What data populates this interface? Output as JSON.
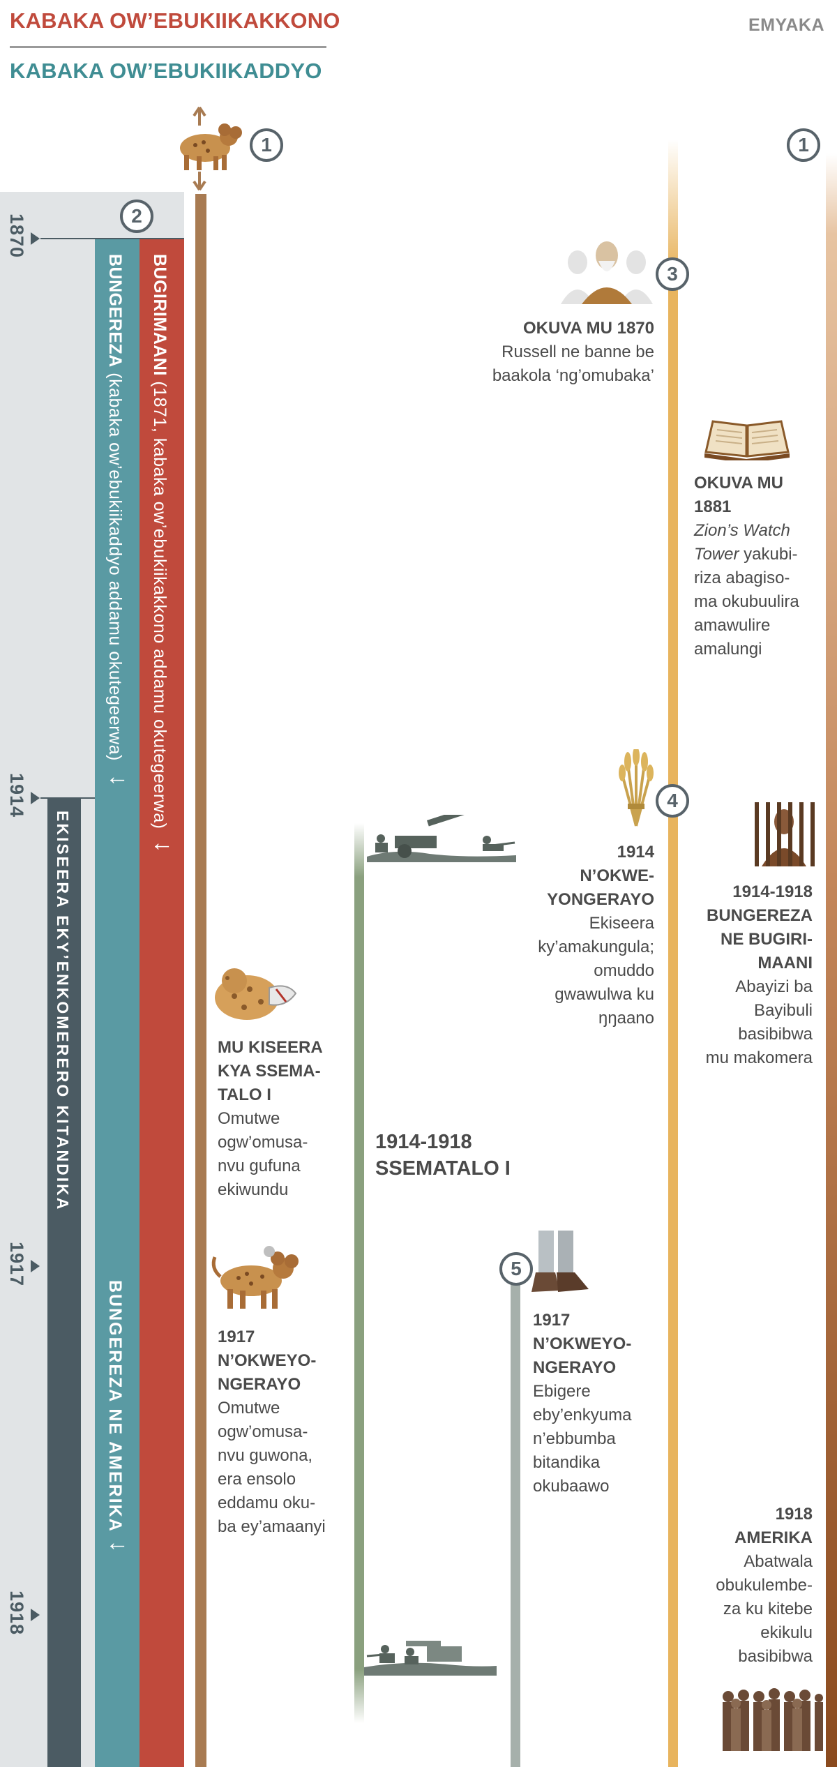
{
  "header": {
    "title_red": "KABAKA OW’EBUKIIKAKKONO",
    "title_teal": "KABAKA OW’EBUKIIKADDYO",
    "years_label": "EMYAKA"
  },
  "badges": {
    "b1_left": "1",
    "b1_right": "1",
    "b2": "2",
    "b3": "3",
    "b4": "4",
    "b5": "5"
  },
  "years": [
    "1870",
    "1914",
    "1917",
    "1918"
  ],
  "bars": {
    "red_name": "BUGIRIMAANI",
    "red_rest": " (1871, kabaka ow’ebukiikakkono addamu okutegeerwa)",
    "red_arrow": "↓",
    "teal_name": "BUNGEREZA",
    "teal_rest": " (kabaka ow’ebukiikaddyo addamu okutegeerwa)",
    "teal_arrow": "↓",
    "teal2_name": "BUNGEREZA NE AMERIKA",
    "teal2_arrow": "↓",
    "slate_name": "EKISEERA EKY’ENKOMERERO KITANDIKA"
  },
  "events": {
    "e1870": {
      "heading": "OKUVA MU 1870",
      "line1": "Russell ne banne be",
      "line2": "baakola ‘ng’omubaka’"
    },
    "e1881": {
      "heading1": "OKUVA MU",
      "heading2": "1881",
      "italic1": "Zion’s Watch",
      "italic2": "Tower",
      "l1": " yakubi-",
      "l2": "riza abagiso-",
      "l3": "ma okubuulira",
      "l4": "amawulire",
      "l5": "amalungi"
    },
    "e1914": {
      "h1": "1914",
      "h2": "N’OKWE-",
      "h3": "YONGERAYO",
      "l1": "Ekiseera",
      "l2": "ky’amakungula;",
      "l3": "omuddo",
      "l4": "gwawulwa ku",
      "l5": "ŋŋaano"
    },
    "e1914_1918": {
      "h1": "1914-1918",
      "h2": "BUNGEREZA",
      "h3": "NE BUGIRI-",
      "h4": "MAANI",
      "l1": "Abayizi ba",
      "l2": "Bayibuli",
      "l3": "basibibwa",
      "l4": "mu makomera"
    },
    "ww1": {
      "h1": "MU KISEERA",
      "h2": "KYA SSEMA-",
      "h3": "TALO I",
      "l1": "Omutwe",
      "l2": "ogw’omusa-",
      "l3": "nvu gufuna",
      "l4": "ekiwundu"
    },
    "ww1_label": {
      "l1": "1914-1918",
      "l2": "SSEMATALO I"
    },
    "e1917_left": {
      "h1": "1917",
      "h2": "N’OKWEYO-",
      "h3": "NGERAYO",
      "l1": "Omutwe",
      "l2": "ogw’omusa-",
      "l3": "nvu guwona,",
      "l4": "era ensolo",
      "l5": "eddamu oku-",
      "l6": "ba ey’amaanyi"
    },
    "e1917_right": {
      "h1": "1917",
      "h2": "N’OKWEYO-",
      "h3": "NGERAYO",
      "l1": "Ebigere",
      "l2": "eby’enkyuma",
      "l3": "n’ebbumba",
      "l4": "bitandika",
      "l5": "okubaawo"
    },
    "e1918": {
      "h1": "1918",
      "h2": "AMERIKA",
      "l1": "Abatwala",
      "l2": "obukulembe-",
      "l3": "za ku kitebe",
      "l4": "ekikulu",
      "l5": "basibibwa"
    }
  },
  "icons": [
    "beast-icon",
    "russell-portrait-icon",
    "open-bible-icon",
    "wheat-sheaf-icon",
    "prisoner-behind-bars-icon",
    "wounded-beast-head-icon",
    "healed-beast-icon",
    "soldiers-cannon-icon",
    "iron-clay-feet-icon",
    "group-of-men-icon"
  ],
  "colors": {
    "red": "#c04a3c",
    "teal": "#5a9aa3",
    "slate": "#4b5b63",
    "brown": "#a87b52",
    "green": "#8aa07e",
    "gold": "#e8b45e",
    "grey_green": "#a6b0ab",
    "panel": "#e1e4e6"
  }
}
